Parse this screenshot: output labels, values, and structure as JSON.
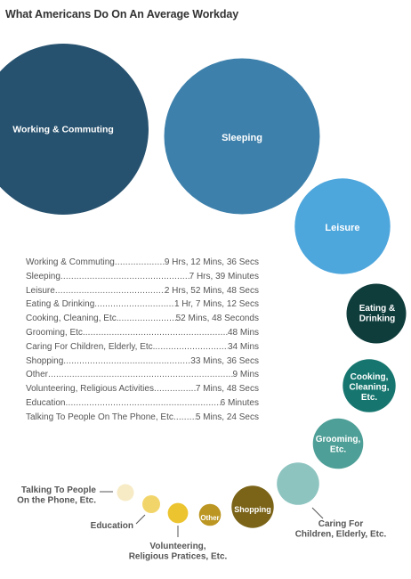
{
  "title": "What Americans Do On An Average Workday",
  "chart_data": {
    "type": "bubble",
    "title": "What Americans Do On An Average Workday",
    "unit": "seconds",
    "items": [
      {
        "name": "Working & Commuting",
        "label": "Working & Commuting",
        "display": "9 Hrs, 12 Mins, 36 Secs",
        "value": 33156,
        "color": "#27526f"
      },
      {
        "name": "Sleeping",
        "label": "Sleeping",
        "display": "7 Hrs, 39 Minutes",
        "value": 27540,
        "color": "#3d80ab"
      },
      {
        "name": "Leisure",
        "label": "Leisure",
        "display": "2 Hrs, 52 Mins, 48 Secs",
        "value": 10368,
        "color": "#4da6dc"
      },
      {
        "name": "Eating & Drinking",
        "label": "Eating & Drinking",
        "display": "1 Hr, 7 Mins, 12 Secs",
        "value": 4032,
        "color": "#0f3d3c"
      },
      {
        "name": "Cooking, Cleaning, Etc.",
        "label": "Cooking, Cleaning, Etc.",
        "display": "52 Mins, 48 Seconds",
        "value": 3168,
        "color": "#16766f"
      },
      {
        "name": "Grooming, Etc.",
        "label": "Grooming, Etc.",
        "display": "48 Mins",
        "value": 2880,
        "color": "#4e9f97"
      },
      {
        "name": "Caring For Children, Elderly, Etc.",
        "label": "Caring For Children, Elderly, Etc.",
        "display": "34 Mins",
        "value": 2040,
        "color": "#8dc4c0"
      },
      {
        "name": "Shopping",
        "label": "Shopping",
        "display": "33 Mins, 36 Secs",
        "value": 2016,
        "color": "#7b6418"
      },
      {
        "name": "Other",
        "label": "Other",
        "display": "9 Mins",
        "value": 540,
        "color": "#bc9622"
      },
      {
        "name": "Volunteering, Religious Activities",
        "label": "Volunteering, Religious Practices, Etc.",
        "display": "7 Mins, 48 Secs",
        "value": 468,
        "color": "#ecc42f"
      },
      {
        "name": "Education",
        "label": "Education",
        "display": "6 Minutes",
        "value": 360,
        "color": "#f2d56a"
      },
      {
        "name": "Talking To People On The Phone, Etc",
        "label": "Talking To People On the Phone, Etc.",
        "display": "5 Mins, 24 Secs",
        "value": 324,
        "color": "#f6ebc5"
      }
    ]
  },
  "bubble_text": {
    "working": [
      "Working & Commuting"
    ],
    "sleeping": [
      "Sleeping"
    ],
    "leisure": [
      "Leisure"
    ],
    "eating": [
      "Eating &",
      "Drinking"
    ],
    "cooking": [
      "Cooking,",
      "Cleaning,",
      "Etc."
    ],
    "grooming": [
      "Grooming,",
      "Etc."
    ],
    "shopping": [
      "Shopping"
    ],
    "other": [
      "Other"
    ]
  },
  "callouts": {
    "caring": [
      "Caring For",
      "Children, Elderly, Etc."
    ],
    "volunteering": [
      "Volunteering,",
      "Religious Pratices, Etc."
    ],
    "education": [
      "Education"
    ],
    "phone": [
      "Talking To People",
      "On the Phone, Etc."
    ]
  },
  "legend": [
    {
      "name": "Working & Commuting",
      "value": "9 Hrs, 12 Mins, 36 Secs"
    },
    {
      "name": "Sleeping",
      "value": "7 Hrs, 39 Minutes"
    },
    {
      "name": "Leisure",
      "value": "2 Hrs, 52 Mins, 48 Secs"
    },
    {
      "name": "Eating & Drinking",
      "value": "1 Hr, 7 Mins, 12 Secs"
    },
    {
      "name": "Cooking, Cleaning, Etc.",
      "value": "52 Mins, 48 Seconds"
    },
    {
      "name": "Grooming, Etc.",
      "value": "48 Mins"
    },
    {
      "name": "Caring For Children, Elderly, Etc.",
      "value": "34 Mins"
    },
    {
      "name": "Shopping",
      "value": "33 Mins, 36 Secs"
    },
    {
      "name": "Other",
      "value": "9 Mins"
    },
    {
      "name": "Volunteering, Religious Activities",
      "value": "7 Mins, 48 Secs"
    },
    {
      "name": "Education",
      "value": "6 Minutes"
    },
    {
      "name": "Talking To People On The Phone, Etc",
      "value": "5 Mins, 24 Secs"
    }
  ]
}
